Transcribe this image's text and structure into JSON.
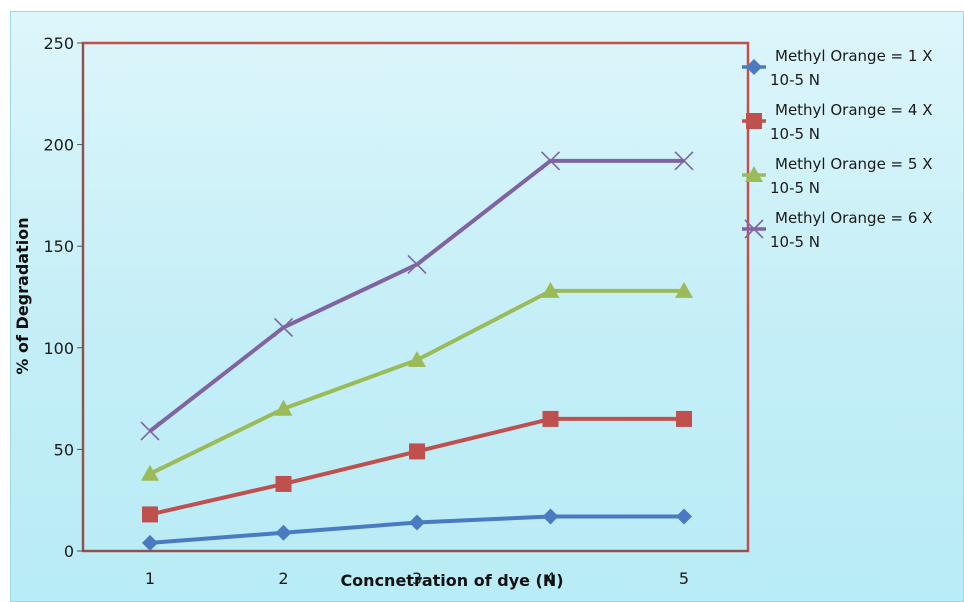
{
  "chart_data": {
    "type": "line",
    "title": "",
    "xlabel": "Concnetration of dye (N)",
    "ylabel": "% of Degradation",
    "categories": [
      "1",
      "2",
      "3",
      "4",
      "5"
    ],
    "ylim": [
      0,
      250
    ],
    "yticks": [
      0,
      50,
      100,
      150,
      200,
      250
    ],
    "grid": false,
    "legend_position": "right",
    "series": [
      {
        "name": "Methyl Orange = 1 X 10-5 N",
        "name_lines": [
          "Methyl Orange = 1 X",
          "10-5 N"
        ],
        "values": [
          4,
          9,
          14,
          17,
          17
        ],
        "color": "#4a7ac2",
        "marker": "diamond"
      },
      {
        "name": "Methyl Orange = 4 X 10-5 N",
        "name_lines": [
          "Methyl Orange = 4 X",
          "10-5 N"
        ],
        "values": [
          18,
          33,
          49,
          65,
          65
        ],
        "color": "#c0504d",
        "marker": "square"
      },
      {
        "name": "Methyl Orange = 5 X 10-5 N",
        "name_lines": [
          "Methyl Orange = 5 X",
          "10-5 N"
        ],
        "values": [
          38,
          70,
          94,
          128,
          128
        ],
        "color": "#9bbb59",
        "marker": "triangle"
      },
      {
        "name": "Methyl Orange = 6 X 10-5 N",
        "name_lines": [
          "Methyl Orange = 6 X",
          "10-5 N"
        ],
        "values": [
          59,
          110,
          141,
          192,
          192
        ],
        "color": "#8064a2",
        "marker": "x"
      }
    ],
    "plot_area_border_color": "#c0504d",
    "background_color": "#c4eef7"
  }
}
